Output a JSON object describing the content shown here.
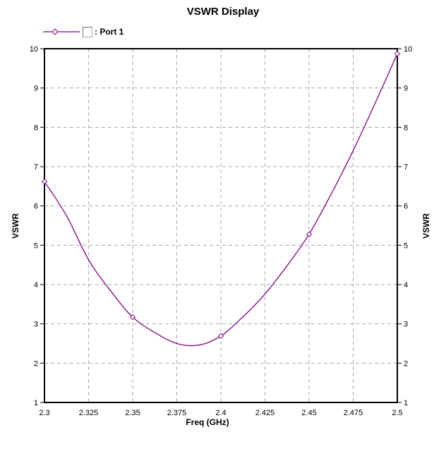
{
  "title": "VSWR Display",
  "legend": {
    "symbol_box": "gamma-placeholder-box",
    "label": ": Port 1"
  },
  "chart_data": {
    "type": "line",
    "title": "VSWR Display",
    "xlabel": "Freq (GHz)",
    "ylabel_left": "VSWR",
    "ylabel_right": "VSWR",
    "xlim": [
      2.3,
      2.5
    ],
    "ylim": [
      1,
      10
    ],
    "x_ticks": [
      2.3,
      2.325,
      2.35,
      2.375,
      2.4,
      2.425,
      2.45,
      2.475,
      2.5
    ],
    "x_tick_labels": [
      "2.3",
      "2.325",
      "2.35",
      "2.375",
      "2.4",
      "2.425",
      "2.45",
      "2.475",
      "2.5"
    ],
    "y_ticks": [
      1,
      2,
      3,
      4,
      5,
      6,
      7,
      8,
      9,
      10
    ],
    "y_tick_labels": [
      "1",
      "2",
      "3",
      "4",
      "5",
      "6",
      "7",
      "8",
      "9",
      "10"
    ],
    "grid": true,
    "grid_style": "dashed",
    "legend_position": "top-left",
    "series": [
      {
        "name": "Port 1",
        "legend_label": ": Port 1",
        "color": "#880088",
        "marker": "diamond",
        "marker_points": [
          [
            2.3,
            6.62
          ],
          [
            2.35,
            3.17
          ],
          [
            2.4,
            2.69
          ],
          [
            2.45,
            5.28
          ],
          [
            2.5,
            9.87
          ]
        ],
        "curve_samples": [
          [
            2.3,
            6.62
          ],
          [
            2.3125,
            5.75
          ],
          [
            2.325,
            4.63
          ],
          [
            2.3375,
            3.84
          ],
          [
            2.35,
            3.17
          ],
          [
            2.3625,
            2.78
          ],
          [
            2.375,
            2.5
          ],
          [
            2.3875,
            2.46
          ],
          [
            2.4,
            2.69
          ],
          [
            2.4125,
            3.18
          ],
          [
            2.425,
            3.76
          ],
          [
            2.4375,
            4.48
          ],
          [
            2.45,
            5.28
          ],
          [
            2.4625,
            6.3
          ],
          [
            2.475,
            7.41
          ],
          [
            2.4875,
            8.62
          ],
          [
            2.5,
            9.87
          ]
        ]
      }
    ],
    "colors": {
      "grid": "#aaaaaa",
      "axis": "#000000",
      "background": "#ffffff"
    }
  }
}
